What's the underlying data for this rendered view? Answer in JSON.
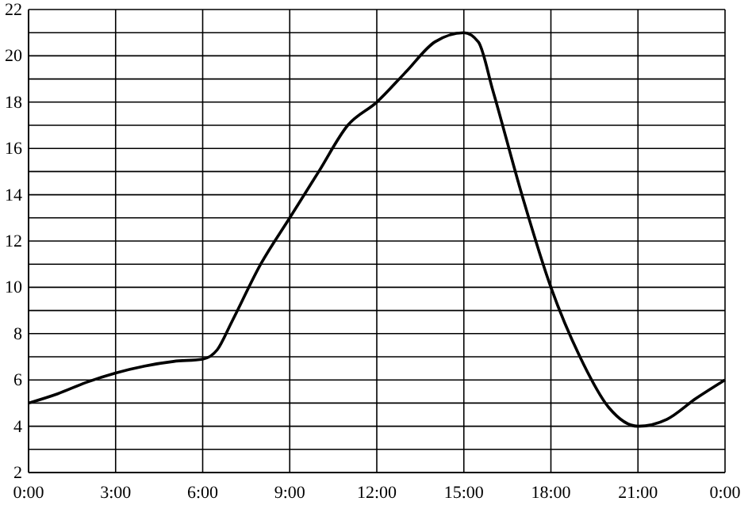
{
  "chart_data": {
    "type": "line",
    "x": [
      0,
      1,
      2,
      3,
      4,
      5,
      6,
      6.5,
      7,
      8,
      9,
      10,
      11,
      12,
      13,
      14,
      15,
      15.5,
      16,
      17,
      18,
      19,
      20,
      21,
      22,
      23,
      24
    ],
    "values": [
      5,
      5.4,
      5.9,
      6.3,
      6.6,
      6.8,
      6.9,
      7.3,
      8.5,
      11,
      13,
      15,
      17,
      18,
      19.3,
      20.6,
      21,
      20.6,
      18.5,
      14,
      10,
      7,
      4.8,
      4,
      4.3,
      5.2,
      6
    ],
    "color": "#000000",
    "xlim": [
      0,
      24
    ],
    "xticks": [
      {
        "value": 0,
        "label": "0:00"
      },
      {
        "value": 3,
        "label": "3:00"
      },
      {
        "value": 6,
        "label": "6:00"
      },
      {
        "value": 9,
        "label": "9:00"
      },
      {
        "value": 12,
        "label": "12:00"
      },
      {
        "value": 15,
        "label": "15:00"
      },
      {
        "value": 18,
        "label": "18:00"
      },
      {
        "value": 21,
        "label": "21:00"
      },
      {
        "value": 24,
        "label": "0:00"
      }
    ],
    "ylim": [
      2,
      22
    ],
    "yticks": [
      2,
      {
        "value": 3,
        "label": null
      },
      4,
      {
        "value": 5,
        "label": null
      },
      6,
      {
        "value": 7,
        "label": null
      },
      8,
      {
        "value": 9,
        "label": null
      },
      10,
      {
        "value": 11,
        "label": null
      },
      12,
      {
        "value": 13,
        "label": null
      },
      14,
      {
        "value": 15,
        "label": null
      },
      16,
      {
        "value": 17,
        "label": null
      },
      18,
      {
        "value": 19,
        "label": null
      },
      20,
      {
        "value": 21,
        "label": null
      },
      22
    ],
    "grid": true,
    "marker": "none",
    "line_style": "solid"
  }
}
